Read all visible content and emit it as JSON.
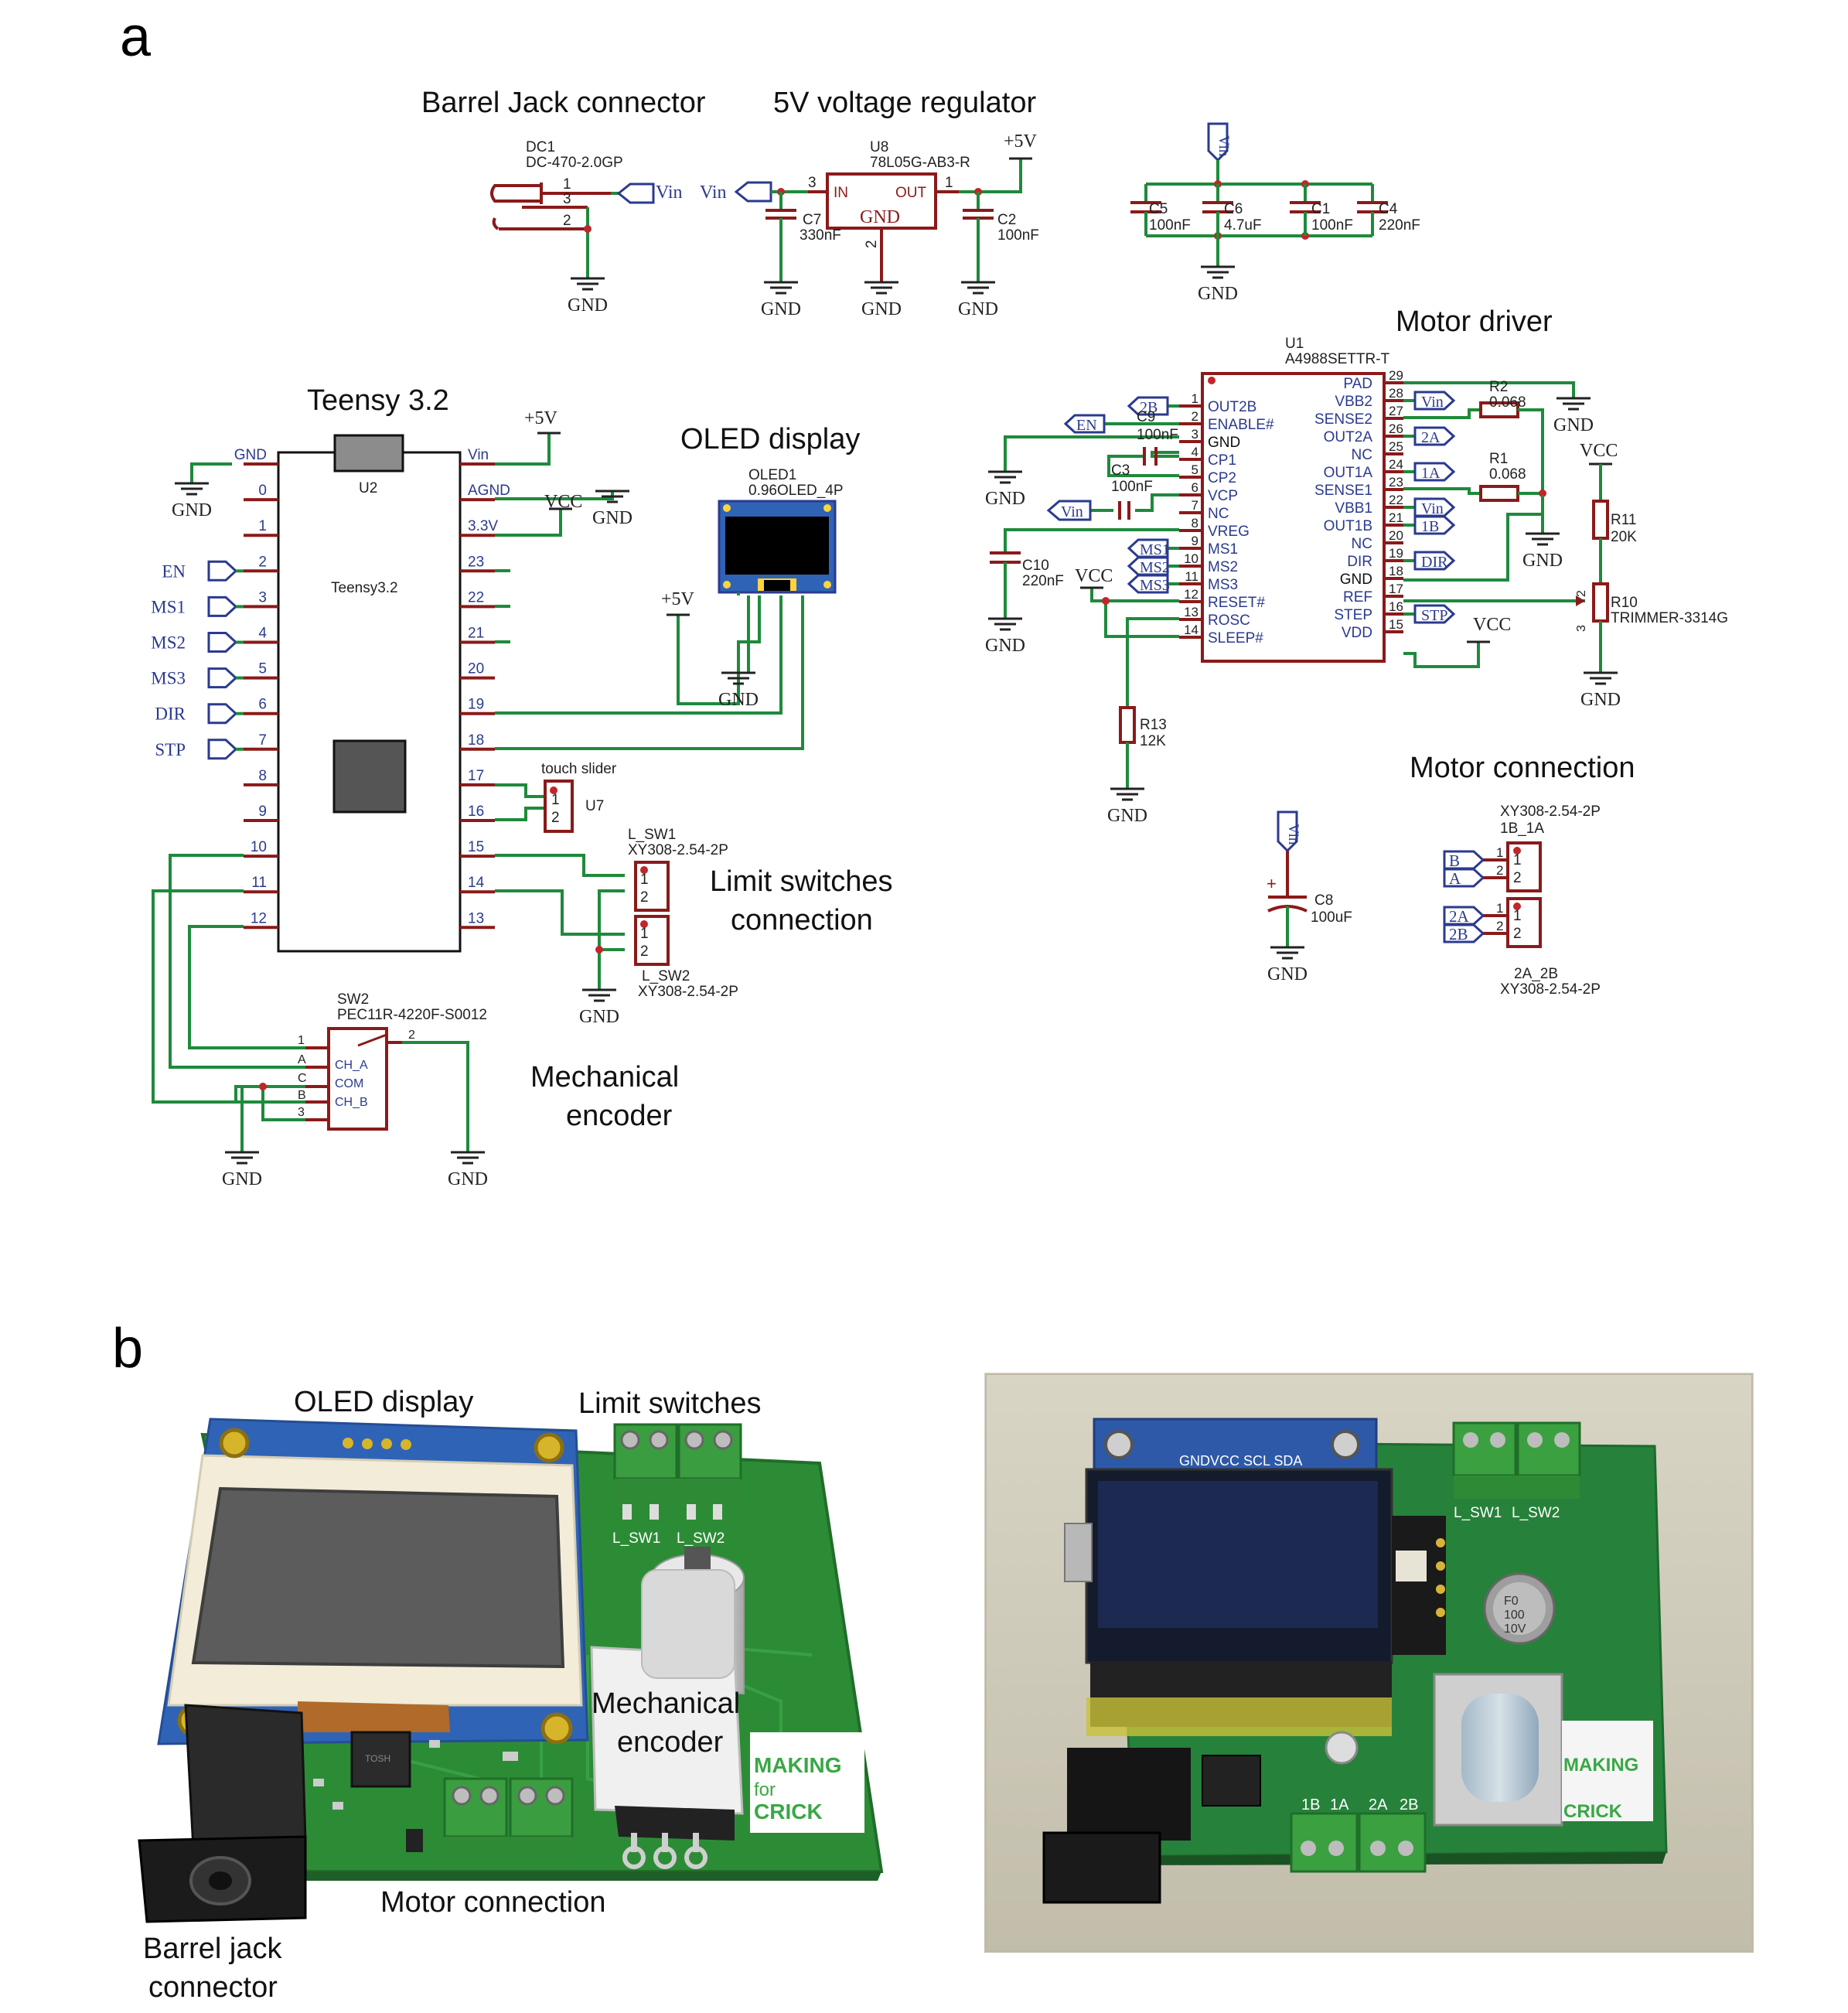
{
  "panel_a": {
    "letter": "a",
    "section_titles": {
      "barrel": "Barrel Jack connector",
      "regulator": "5V voltage regulator",
      "teensy": "Teensy 3.2",
      "oled": "OLED display",
      "motor_driver": "Motor driver",
      "limit": [
        "Limit switches",
        "connection"
      ],
      "encoder": [
        "Mechanical",
        "encoder"
      ],
      "motor_conn": "Motor connection"
    },
    "nets": {
      "gnd": "GND",
      "vin": "Vin",
      "p5v": "+5V",
      "vcc": "VCC"
    },
    "dc1": {
      "ref": "DC1",
      "part": "DC-470-2.0GP",
      "pins": [
        "1",
        "3",
        "2"
      ]
    },
    "u8": {
      "ref": "U8",
      "part": "78L05G-AB3-R",
      "in": "IN",
      "out": "OUT",
      "gnd": "GND",
      "pins": [
        "3",
        "1",
        "2"
      ]
    },
    "c7": {
      "ref": "C7",
      "val": "330nF"
    },
    "c2": {
      "ref": "C2",
      "val": "100nF"
    },
    "decoupling": [
      {
        "ref": "C5",
        "val": "100nF"
      },
      {
        "ref": "C6",
        "val": "4.7uF"
      },
      {
        "ref": "C1",
        "val": "100nF"
      },
      {
        "ref": "C4",
        "val": "220nF"
      }
    ],
    "teensy_part": {
      "ref": "U2",
      "name": "Teensy3.2"
    },
    "teensy_left": [
      {
        "pin": "GND",
        "label": ""
      },
      {
        "pin": "0",
        "label": ""
      },
      {
        "pin": "1",
        "label": ""
      },
      {
        "pin": "2",
        "label": "EN"
      },
      {
        "pin": "3",
        "label": "MS1"
      },
      {
        "pin": "4",
        "label": "MS2"
      },
      {
        "pin": "5",
        "label": "MS3"
      },
      {
        "pin": "6",
        "label": "DIR"
      },
      {
        "pin": "7",
        "label": "STP"
      },
      {
        "pin": "8",
        "label": ""
      },
      {
        "pin": "9",
        "label": ""
      },
      {
        "pin": "10",
        "label": ""
      },
      {
        "pin": "11",
        "label": ""
      },
      {
        "pin": "12",
        "label": ""
      }
    ],
    "teensy_right": [
      "Vin",
      "AGND",
      "3.3V",
      "23",
      "22",
      "21",
      "20",
      "19",
      "18",
      "17",
      "16",
      "15",
      "14",
      "13"
    ],
    "oled1": {
      "ref": "OLED1",
      "part": "0.96OLED_4P"
    },
    "u7": {
      "title": "touch slider",
      "ref": "U7",
      "pins": [
        "1",
        "2"
      ]
    },
    "lsw1": {
      "ref": "L_SW1",
      "part": "XY308-2.54-2P"
    },
    "lsw2": {
      "ref": "L_SW2",
      "part": "XY308-2.54-2P"
    },
    "conn_pins": [
      "1",
      "2"
    ],
    "sw2": {
      "ref": "SW2",
      "part": "PEC11R-4220F-S0012",
      "left_pins": [
        "1",
        "A",
        "C",
        "B",
        "3"
      ],
      "inner": [
        "CH_A",
        "COM",
        "CH_B"
      ],
      "pin2": "2"
    },
    "u1": {
      "ref": "U1",
      "part": "A4988SETTR-T"
    },
    "u1_left": [
      {
        "pin": "1",
        "name": "OUT2B",
        "net": "2B"
      },
      {
        "pin": "2",
        "name": "ENABLE#",
        "net": "EN"
      },
      {
        "pin": "3",
        "name": "GND",
        "net": ""
      },
      {
        "pin": "4",
        "name": "CP1",
        "net": ""
      },
      {
        "pin": "5",
        "name": "CP2",
        "net": ""
      },
      {
        "pin": "6",
        "name": "VCP",
        "net": ""
      },
      {
        "pin": "7",
        "name": "NC",
        "net": ""
      },
      {
        "pin": "8",
        "name": "VREG",
        "net": ""
      },
      {
        "pin": "9",
        "name": "MS1",
        "net": "MS1"
      },
      {
        "pin": "10",
        "name": "MS2",
        "net": "MS2"
      },
      {
        "pin": "11",
        "name": "MS3",
        "net": "MS3"
      },
      {
        "pin": "12",
        "name": "RESET#",
        "net": ""
      },
      {
        "pin": "13",
        "name": "ROSC",
        "net": ""
      },
      {
        "pin": "14",
        "name": "SLEEP#",
        "net": ""
      }
    ],
    "u1_right": [
      {
        "pin": "29",
        "name": "PAD",
        "net": ""
      },
      {
        "pin": "28",
        "name": "VBB2",
        "net": "Vin"
      },
      {
        "pin": "27",
        "name": "SENSE2",
        "net": ""
      },
      {
        "pin": "26",
        "name": "OUT2A",
        "net": "2A"
      },
      {
        "pin": "25",
        "name": "NC",
        "net": ""
      },
      {
        "pin": "24",
        "name": "OUT1A",
        "net": "1A"
      },
      {
        "pin": "23",
        "name": "SENSE1",
        "net": ""
      },
      {
        "pin": "22",
        "name": "VBB1",
        "net": "Vin"
      },
      {
        "pin": "21",
        "name": "OUT1B",
        "net": "1B"
      },
      {
        "pin": "20",
        "name": "NC",
        "net": ""
      },
      {
        "pin": "19",
        "name": "DIR",
        "net": "DIR"
      },
      {
        "pin": "18",
        "name": "GND",
        "net": ""
      },
      {
        "pin": "17",
        "name": "REF",
        "net": ""
      },
      {
        "pin": "16",
        "name": "STEP",
        "net": "STP"
      },
      {
        "pin": "15",
        "name": "VDD",
        "net": ""
      }
    ],
    "c9": {
      "ref": "C9",
      "val": "100nF"
    },
    "c3": {
      "ref": "C3",
      "val": "100nF"
    },
    "c10": {
      "ref": "C10",
      "val": "220nF"
    },
    "r2": {
      "ref": "R2",
      "val": "0.068"
    },
    "r1": {
      "ref": "R1",
      "val": "0.068"
    },
    "r11": {
      "ref": "R11",
      "val": "20K"
    },
    "r10": {
      "ref": "R10",
      "val": "TRIMMER-3314G",
      "pins": [
        "2",
        "3"
      ]
    },
    "r13": {
      "ref": "R13",
      "val": "12K"
    },
    "c8": {
      "ref": "C8",
      "val": "100uF"
    },
    "mc1": {
      "part": "XY308-2.54-2P",
      "ref": "1B_1A",
      "nets": [
        "B",
        "A"
      ]
    },
    "mc2": {
      "ref": "2A_2B",
      "part": "XY308-2.54-2P",
      "nets": [
        "2A",
        "2B"
      ]
    }
  },
  "panel_b": {
    "letter": "b",
    "labels": {
      "oled": "OLED display",
      "limit": "Limit switches",
      "encoder": [
        "Mechanical",
        "encoder"
      ],
      "motor": "Motor connection",
      "barrel": [
        "Barrel jack",
        "connector"
      ]
    },
    "silk": {
      "sw1": "L_SW1",
      "sw2": "L_SW2",
      "logo": [
        "MAKING",
        "for",
        "CRICK"
      ],
      "photo_pins": "GNDVCC SCL SDA",
      "photo_motor": [
        "1B",
        "1A",
        "2A",
        "2B"
      ],
      "cap": [
        "F0",
        "100",
        "10V"
      ],
      "chip": "TOSH"
    }
  },
  "colors": {
    "wire": "#1f8a3c",
    "part": "#8b1a1a",
    "pinblue": "#2b3a8f",
    "pcb": "#2c8c36",
    "pcb_dark": "#1f6e29"
  }
}
